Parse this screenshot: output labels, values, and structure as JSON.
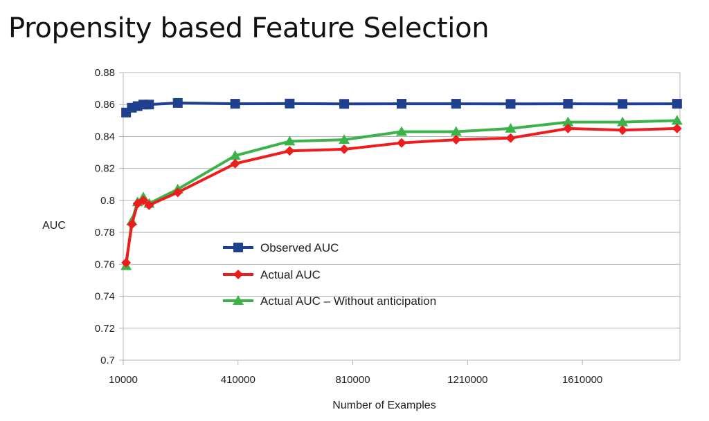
{
  "slide": {
    "title": "Propensity based Feature Selection"
  },
  "chart_data": {
    "type": "line",
    "xlabel": "Number of Examples",
    "ylabel": "AUC",
    "xlim": [
      10000,
      1950000
    ],
    "ylim": [
      0.7,
      0.88
    ],
    "xticks": [
      10000,
      410000,
      810000,
      1210000,
      1610000
    ],
    "yticks": [
      0.7,
      0.72,
      0.74,
      0.76,
      0.78,
      0.8,
      0.82,
      0.84,
      0.86,
      0.88
    ],
    "grid": "horizontal",
    "legend_position": "center",
    "series": [
      {
        "name": "Observed AUC",
        "color": "#1f3f8f",
        "marker": "square",
        "x": [
          20000,
          40000,
          60000,
          80000,
          100000,
          200000,
          400000,
          590000,
          780000,
          980000,
          1170000,
          1360000,
          1560000,
          1750000,
          1940000
        ],
        "y": [
          0.855,
          0.858,
          0.859,
          0.86,
          0.86,
          0.861,
          0.8605,
          0.8606,
          0.8604,
          0.8605,
          0.8605,
          0.8604,
          0.8605,
          0.8604,
          0.8605
        ]
      },
      {
        "name": "Actual AUC",
        "color": "#ee1c1c",
        "marker": "diamond",
        "x": [
          20000,
          40000,
          60000,
          80000,
          100000,
          200000,
          400000,
          590000,
          780000,
          980000,
          1170000,
          1360000,
          1560000,
          1750000,
          1940000
        ],
        "y": [
          0.761,
          0.785,
          0.798,
          0.8,
          0.797,
          0.805,
          0.823,
          0.831,
          0.832,
          0.836,
          0.838,
          0.839,
          0.845,
          0.844,
          0.845
        ]
      },
      {
        "name": "Actual AUC – Without anticipation",
        "color": "#3cb34a",
        "marker": "triangle",
        "x": [
          20000,
          40000,
          60000,
          80000,
          100000,
          200000,
          400000,
          590000,
          780000,
          980000,
          1170000,
          1360000,
          1560000,
          1750000,
          1940000
        ],
        "y": [
          0.759,
          0.787,
          0.799,
          0.802,
          0.798,
          0.807,
          0.828,
          0.837,
          0.838,
          0.843,
          0.843,
          0.845,
          0.849,
          0.849,
          0.85
        ]
      }
    ]
  }
}
